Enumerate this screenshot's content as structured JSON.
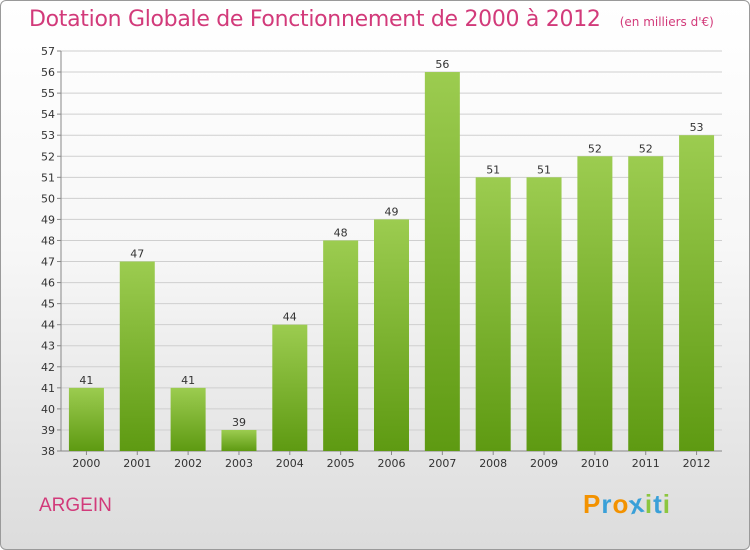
{
  "chart_data": {
    "type": "bar",
    "title": "Dotation Globale de Fonctionnement de 2000 à 2012",
    "subtitle": "(en milliers d'€)",
    "categories": [
      "2000",
      "2001",
      "2002",
      "2003",
      "2004",
      "2005",
      "2006",
      "2007",
      "2008",
      "2009",
      "2010",
      "2011",
      "2012"
    ],
    "values": [
      41,
      47,
      41,
      39,
      44,
      48,
      49,
      56,
      51,
      51,
      52,
      52,
      53
    ],
    "ylim": [
      38,
      57
    ],
    "yticks": [
      38,
      39,
      40,
      41,
      42,
      43,
      44,
      45,
      46,
      47,
      48,
      49,
      50,
      51,
      52,
      53,
      54,
      55,
      56,
      57
    ],
    "grid": true,
    "colors": {
      "bar_light": "#9ccc50",
      "bar_dark": "#5e9a12",
      "grid": "#cfcfcf",
      "title": "#d23a7a"
    }
  },
  "place_name": "ARGEIN",
  "logo": {
    "text": "Proxiti",
    "letters": [
      "P",
      "r",
      "o",
      "x",
      "i",
      "t",
      "i"
    ],
    "colors": [
      "#f39200",
      "#3aa0d8",
      "#f39200",
      "#3aa0d8",
      "#8cc63f",
      "#3aa0d8",
      "#8cc63f"
    ]
  }
}
